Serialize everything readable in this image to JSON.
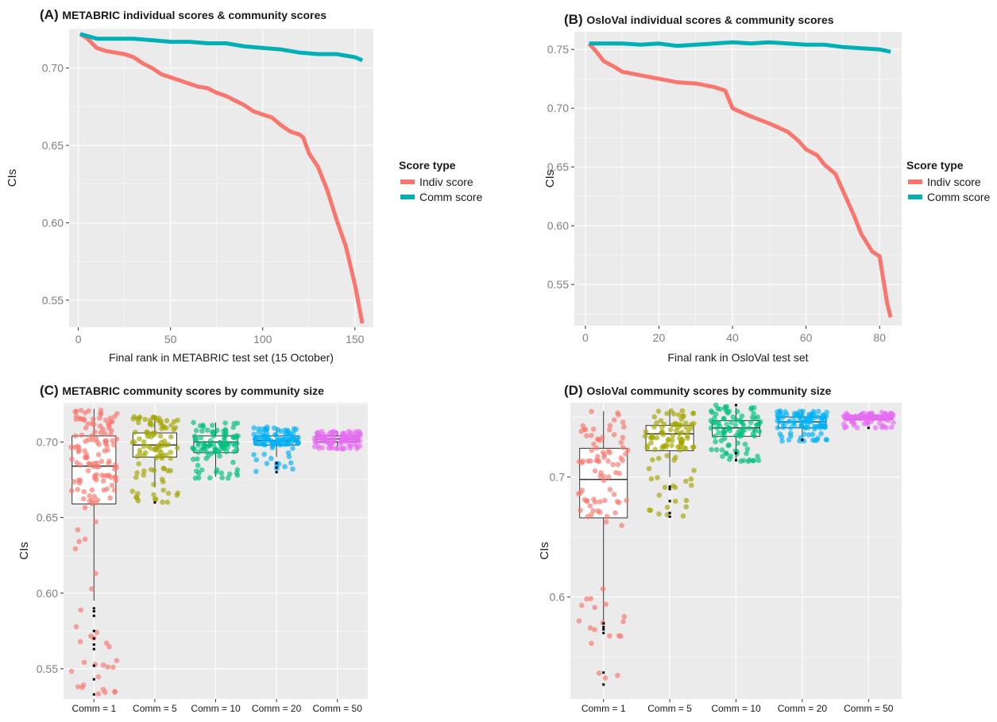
{
  "colors": {
    "panel": "#ebebeb",
    "grid": "#ffffff",
    "indiv": "#f8766d",
    "comm": "#00b0b6",
    "groups": [
      "#f8766d",
      "#a3a500",
      "#00bf7d",
      "#00b0f6",
      "#e76bf3"
    ],
    "tick_text": "#7f7f7f",
    "text": "#1a1a1a"
  },
  "legend": {
    "title": "Score type",
    "items": [
      "Indiv score",
      "Comm score"
    ]
  },
  "chart_data": [
    {
      "id": "A",
      "type": "line",
      "label": "(A)",
      "title": "METABRIC individual scores & community scores",
      "xlabel": "Final rank in METABRIC test set (15 October)",
      "ylabel": "CIs",
      "xlim": [
        -5,
        160
      ],
      "ylim": [
        0.5325,
        0.7255
      ],
      "xticks": [
        0,
        50,
        100,
        150
      ],
      "yticks": [
        0.55,
        0.6,
        0.65,
        0.7
      ],
      "ytick_labels": [
        "0.55",
        "0.60",
        "0.65",
        "0.70"
      ],
      "series": [
        {
          "name": "Indiv score",
          "x": [
            1,
            5,
            10,
            15,
            20,
            25,
            30,
            35,
            40,
            45,
            50,
            55,
            60,
            65,
            70,
            75,
            80,
            85,
            90,
            95,
            100,
            105,
            110,
            115,
            120,
            122,
            125,
            130,
            135,
            140,
            145,
            150,
            154
          ],
          "y": [
            0.722,
            0.719,
            0.713,
            0.711,
            0.71,
            0.709,
            0.707,
            0.703,
            0.7,
            0.696,
            0.694,
            0.692,
            0.69,
            0.688,
            0.687,
            0.684,
            0.682,
            0.679,
            0.676,
            0.672,
            0.67,
            0.668,
            0.663,
            0.659,
            0.657,
            0.655,
            0.645,
            0.636,
            0.621,
            0.602,
            0.585,
            0.56,
            0.535
          ]
        },
        {
          "name": "Comm score",
          "x": [
            1,
            10,
            20,
            30,
            40,
            50,
            60,
            70,
            80,
            90,
            100,
            110,
            120,
            130,
            140,
            150,
            154
          ],
          "y": [
            0.722,
            0.719,
            0.719,
            0.719,
            0.718,
            0.717,
            0.717,
            0.716,
            0.716,
            0.714,
            0.713,
            0.712,
            0.71,
            0.709,
            0.709,
            0.707,
            0.705
          ]
        }
      ]
    },
    {
      "id": "B",
      "type": "line",
      "label": "(B)",
      "title": "OsloVal individual scores & community scores",
      "xlabel": "Final rank in OsloVal test set",
      "ylabel": "CIs",
      "xlim": [
        -3,
        86
      ],
      "ylim": [
        0.515,
        0.765
      ],
      "xticks": [
        0,
        20,
        40,
        60,
        80
      ],
      "yticks": [
        0.55,
        0.6,
        0.65,
        0.7,
        0.75
      ],
      "ytick_labels": [
        "0.55",
        "0.60",
        "0.65",
        "0.70",
        "0.75"
      ],
      "series": [
        {
          "name": "Indiv score",
          "x": [
            1,
            3,
            5,
            8,
            10,
            15,
            20,
            25,
            30,
            35,
            38,
            40,
            42,
            45,
            50,
            55,
            58,
            60,
            63,
            65,
            68,
            70,
            73,
            75,
            78,
            80,
            82,
            83
          ],
          "y": [
            0.755,
            0.748,
            0.74,
            0.735,
            0.731,
            0.728,
            0.725,
            0.722,
            0.721,
            0.718,
            0.715,
            0.7,
            0.697,
            0.693,
            0.687,
            0.68,
            0.672,
            0.665,
            0.66,
            0.652,
            0.644,
            0.63,
            0.609,
            0.593,
            0.578,
            0.574,
            0.535,
            0.522
          ]
        },
        {
          "name": "Comm score",
          "x": [
            1,
            5,
            10,
            15,
            20,
            25,
            30,
            35,
            40,
            45,
            50,
            55,
            60,
            65,
            70,
            75,
            80,
            83
          ],
          "y": [
            0.755,
            0.755,
            0.755,
            0.754,
            0.755,
            0.753,
            0.754,
            0.755,
            0.756,
            0.755,
            0.756,
            0.755,
            0.754,
            0.754,
            0.752,
            0.751,
            0.75,
            0.748
          ]
        }
      ]
    },
    {
      "id": "C",
      "type": "box",
      "label": "(C)",
      "title": "METABRIC community scores by community size",
      "xlabel": "",
      "ylabel": "CIs",
      "ylim": [
        0.53,
        0.726
      ],
      "yticks": [
        0.55,
        0.6,
        0.65,
        0.7
      ],
      "ytick_labels": [
        "0.55",
        "0.60",
        "0.65",
        "0.70"
      ],
      "categories": [
        "Comm = 1",
        "Comm = 5",
        "Comm = 10",
        "Comm = 20",
        "Comm = 50"
      ],
      "boxes": [
        {
          "q1": 0.659,
          "median": 0.684,
          "q3": 0.704,
          "lo": 0.595,
          "hi": 0.722,
          "min": 0.533,
          "max": 0.722,
          "n": 150,
          "outliers": [
            0.59,
            0.588,
            0.585,
            0.575,
            0.57,
            0.566,
            0.563,
            0.552,
            0.543,
            0.533
          ]
        },
        {
          "q1": 0.69,
          "median": 0.698,
          "q3": 0.706,
          "lo": 0.67,
          "hi": 0.717,
          "min": 0.66,
          "max": 0.717,
          "n": 100,
          "outliers": [
            0.66
          ]
        },
        {
          "q1": 0.693,
          "median": 0.7,
          "q3": 0.704,
          "lo": 0.677,
          "hi": 0.713,
          "min": 0.676,
          "max": 0.713,
          "n": 100,
          "outliers": []
        },
        {
          "q1": 0.698,
          "median": 0.701,
          "q3": 0.704,
          "lo": 0.69,
          "hi": 0.71,
          "min": 0.68,
          "max": 0.71,
          "n": 100,
          "outliers": [
            0.686,
            0.683,
            0.68
          ]
        },
        {
          "q1": 0.7,
          "median": 0.702,
          "q3": 0.704,
          "lo": 0.695,
          "hi": 0.707,
          "min": 0.695,
          "max": 0.707,
          "n": 100,
          "outliers": []
        }
      ]
    },
    {
      "id": "D",
      "type": "box",
      "label": "(D)",
      "title": "OsloVal community scores by community size",
      "xlabel": "",
      "ylabel": "CIs",
      "ylim": [
        0.515,
        0.762
      ],
      "yticks": [
        0.6,
        0.7
      ],
      "ytick_labels": [
        "0.6",
        "0.7"
      ],
      "categories": [
        "Comm = 1",
        "Comm = 5",
        "Comm = 10",
        "Comm = 20",
        "Comm = 50"
      ],
      "boxes": [
        {
          "q1": 0.666,
          "median": 0.698,
          "q3": 0.724,
          "lo": 0.58,
          "hi": 0.755,
          "min": 0.527,
          "max": 0.755,
          "n": 100,
          "outliers": [
            0.578,
            0.575,
            0.573,
            0.57,
            0.537,
            0.527
          ]
        },
        {
          "q1": 0.722,
          "median": 0.736,
          "q3": 0.743,
          "lo": 0.7,
          "hi": 0.756,
          "min": 0.667,
          "max": 0.756,
          "n": 100,
          "outliers": [
            0.692,
            0.69,
            0.68,
            0.67,
            0.667
          ]
        },
        {
          "q1": 0.734,
          "median": 0.741,
          "q3": 0.747,
          "lo": 0.713,
          "hi": 0.758,
          "min": 0.713,
          "max": 0.76,
          "n": 100,
          "outliers": [
            0.76,
            0.72,
            0.714
          ]
        },
        {
          "q1": 0.741,
          "median": 0.746,
          "q3": 0.75,
          "lo": 0.733,
          "hi": 0.756,
          "min": 0.73,
          "max": 0.756,
          "n": 100,
          "outliers": [
            0.731
          ]
        },
        {
          "q1": 0.748,
          "median": 0.749,
          "q3": 0.751,
          "lo": 0.744,
          "hi": 0.754,
          "min": 0.741,
          "max": 0.754,
          "n": 100,
          "outliers": [
            0.741
          ]
        }
      ]
    }
  ]
}
